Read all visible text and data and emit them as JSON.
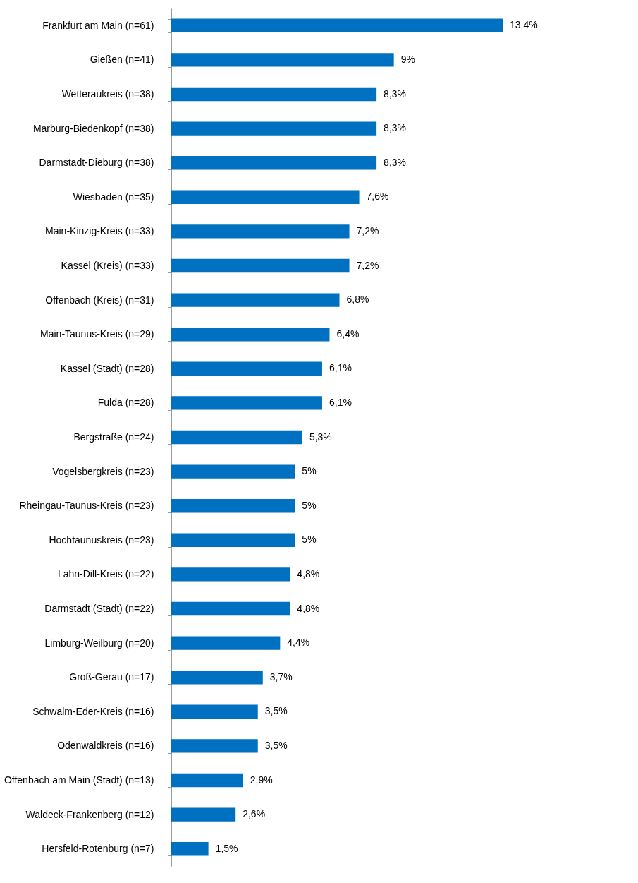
{
  "chart_data": {
    "type": "bar",
    "orientation": "horizontal",
    "color": "#0070c0",
    "categories": [
      "Frankfurt am Main (n=61)",
      "Gießen (n=41)",
      "Wetteraukreis (n=38)",
      "Marburg-Biedenkopf (n=38)",
      "Darmstadt-Dieburg (n=38)",
      "Wiesbaden (n=35)",
      "Main-Kinzig-Kreis (n=33)",
      "Kassel (Kreis) (n=33)",
      "Offenbach (Kreis) (n=31)",
      "Main-Taunus-Kreis (n=29)",
      "Kassel (Stadt) (n=28)",
      "Fulda (n=28)",
      "Bergstraße (n=24)",
      "Vogelsbergkreis (n=23)",
      "Rheingau-Taunus-Kreis (n=23)",
      "Hochtaunuskreis (n=23)",
      "Lahn-Dill-Kreis (n=22)",
      "Darmstadt (Stadt) (n=22)",
      "Limburg-Weilburg (n=20)",
      "Groß-Gerau (n=17)",
      "Schwalm-Eder-Kreis (n=16)",
      "Odenwaldkreis (n=16)",
      "Offenbach am Main (Stadt) (n=13)",
      "Waldeck-Frankenberg (n=12)",
      "Hersfeld-Rotenburg (n=7)"
    ],
    "values": [
      13.4,
      9,
      8.3,
      8.3,
      8.3,
      7.6,
      7.2,
      7.2,
      6.8,
      6.4,
      6.1,
      6.1,
      5.3,
      5,
      5,
      5,
      4.8,
      4.8,
      4.4,
      3.7,
      3.5,
      3.5,
      2.9,
      2.6,
      1.5
    ],
    "value_labels": [
      "13,4%",
      "9%",
      "8,3%",
      "8,3%",
      "8,3%",
      "7,6%",
      "7,2%",
      "7,2%",
      "6,8%",
      "6,4%",
      "6,1%",
      "6,1%",
      "5,3%",
      "5%",
      "5%",
      "5%",
      "4,8%",
      "4,8%",
      "4,4%",
      "3,7%",
      "3,5%",
      "3,5%",
      "2,9%",
      "2,6%",
      "1,5%"
    ],
    "grid": false
  }
}
